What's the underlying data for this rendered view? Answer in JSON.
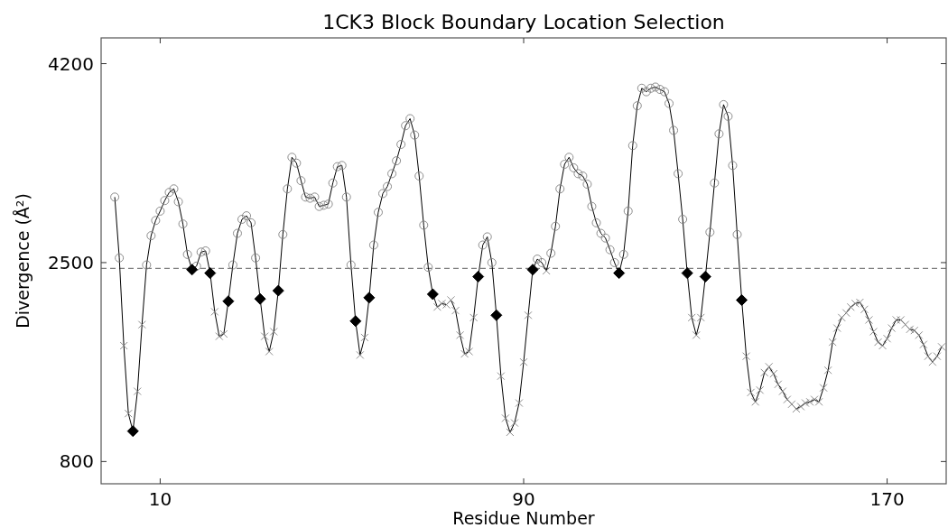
{
  "chart_data": {
    "type": "line",
    "title": "1CK3 Block Boundary Location Selection",
    "xlabel": "Residue Number",
    "ylabel": "Divergence (Å²)",
    "xlim": [
      -3,
      183
    ],
    "xticks": [
      10,
      90,
      170
    ],
    "ylim": [
      610,
      4420
    ],
    "yticks": [
      800,
      2500,
      4200
    ],
    "grid": false,
    "ref_lines": [
      {
        "axis": "y",
        "value": 2450,
        "color": "#808080",
        "line_style": "dashed"
      }
    ],
    "series": [
      {
        "color": "#000000",
        "marker": "none",
        "line_style": "solid",
        "x": [
          0,
          1,
          2,
          3,
          4,
          5,
          6,
          7,
          8,
          9,
          10,
          11,
          12,
          13,
          14,
          15,
          16,
          17,
          18,
          19,
          20,
          21,
          22,
          23,
          24,
          25,
          26,
          27,
          28,
          29,
          30,
          31,
          32,
          33,
          34,
          35,
          36,
          37,
          38,
          39,
          40,
          41,
          42,
          43,
          44,
          45,
          46,
          47,
          48,
          49,
          50,
          51,
          52,
          53,
          54,
          55,
          56,
          57,
          58,
          59,
          60,
          61,
          62,
          63,
          64,
          65,
          66,
          67,
          68,
          69,
          70,
          71,
          72,
          73,
          74,
          75,
          76,
          77,
          78,
          79,
          80,
          81,
          82,
          83,
          84,
          85,
          86,
          87,
          88,
          89,
          90,
          91,
          92,
          93,
          94,
          95,
          96,
          97,
          98,
          99,
          100,
          101,
          102,
          103,
          104,
          105,
          106,
          107,
          108,
          109,
          110,
          111,
          112,
          113,
          114,
          115,
          116,
          117,
          118,
          119,
          120,
          121,
          122,
          123,
          124,
          125,
          126,
          127,
          128,
          129,
          130,
          131,
          132,
          133,
          134,
          135,
          136,
          137,
          138,
          139,
          140,
          141,
          142,
          143,
          144,
          145,
          146,
          147,
          148,
          149,
          150,
          151,
          152,
          153,
          154,
          155,
          156,
          157,
          158,
          159,
          160,
          161,
          162,
          163,
          164,
          165,
          166,
          167,
          168,
          169,
          170,
          171,
          172,
          173,
          174,
          175,
          176,
          177,
          178,
          179,
          180,
          181,
          182
        ],
        "values": [
          3060,
          2540,
          1790,
          1210,
          1060,
          1400,
          1970,
          2480,
          2730,
          2860,
          2940,
          3030,
          3100,
          3130,
          3020,
          2830,
          2570,
          2440,
          2470,
          2590,
          2600,
          2410,
          2080,
          1870,
          1890,
          2170,
          2480,
          2750,
          2870,
          2900,
          2840,
          2540,
          2190,
          1870,
          1740,
          1910,
          2260,
          2740,
          3130,
          3400,
          3350,
          3200,
          3060,
          3050,
          3060,
          2980,
          2990,
          3000,
          3180,
          3320,
          3330,
          3060,
          2480,
          2000,
          1710,
          1860,
          2200,
          2650,
          2930,
          3090,
          3150,
          3260,
          3370,
          3510,
          3670,
          3730,
          3590,
          3240,
          2820,
          2460,
          2230,
          2120,
          2150,
          2140,
          2180,
          2090,
          1880,
          1720,
          1740,
          2030,
          2380,
          2650,
          2720,
          2500,
          2050,
          1530,
          1170,
          1050,
          1130,
          1300,
          1650,
          2050,
          2440,
          2530,
          2500,
          2430,
          2580,
          2810,
          3130,
          3340,
          3400,
          3310,
          3260,
          3240,
          3170,
          2980,
          2840,
          2750,
          2710,
          2610,
          2500,
          2410,
          2570,
          2940,
          3500,
          3840,
          3990,
          3960,
          3990,
          4000,
          3980,
          3960,
          3860,
          3630,
          3260,
          2870,
          2410,
          2030,
          1880,
          2030,
          2380,
          2760,
          3180,
          3600,
          3850,
          3750,
          3330,
          2740,
          2180,
          1700,
          1390,
          1310,
          1410,
          1560,
          1610,
          1550,
          1460,
          1400,
          1330,
          1290,
          1250,
          1270,
          1300,
          1310,
          1330,
          1310,
          1430,
          1580,
          1820,
          1940,
          2030,
          2070,
          2120,
          2150,
          2160,
          2100,
          2010,
          1910,
          1820,
          1790,
          1850,
          1940,
          2010,
          2010,
          1970,
          1930,
          1920,
          1880,
          1800,
          1700,
          1650,
          1700,
          1780
        ]
      },
      {
        "type": "scatter",
        "color": "#808080",
        "marker": "circle",
        "x": [
          0,
          1,
          7,
          8,
          9,
          10,
          11,
          12,
          13,
          14,
          15,
          16,
          18,
          19,
          20,
          26,
          27,
          28,
          29,
          30,
          31,
          37,
          38,
          39,
          40,
          41,
          42,
          43,
          44,
          45,
          46,
          47,
          48,
          49,
          50,
          51,
          52,
          57,
          58,
          59,
          60,
          61,
          62,
          63,
          64,
          65,
          66,
          67,
          68,
          69,
          81,
          82,
          83,
          93,
          94,
          96,
          97,
          98,
          99,
          100,
          101,
          102,
          103,
          104,
          105,
          106,
          107,
          108,
          109,
          110,
          112,
          113,
          114,
          115,
          116,
          117,
          118,
          119,
          120,
          121,
          122,
          123,
          124,
          125,
          131,
          132,
          133,
          134,
          135,
          136,
          137
        ],
        "values": [
          3060,
          2540,
          2480,
          2730,
          2860,
          2940,
          3030,
          3100,
          3130,
          3020,
          2830,
          2570,
          2470,
          2590,
          2600,
          2480,
          2750,
          2870,
          2900,
          2840,
          2540,
          2740,
          3130,
          3400,
          3350,
          3200,
          3060,
          3050,
          3060,
          2980,
          2990,
          3000,
          3180,
          3320,
          3330,
          3060,
          2480,
          2650,
          2930,
          3090,
          3150,
          3260,
          3370,
          3510,
          3670,
          3730,
          3590,
          3240,
          2820,
          2460,
          2650,
          2720,
          2500,
          2530,
          2500,
          2580,
          2810,
          3130,
          3340,
          3400,
          3310,
          3260,
          3240,
          3170,
          2980,
          2840,
          2750,
          2710,
          2610,
          2500,
          2570,
          2940,
          3500,
          3840,
          3990,
          3960,
          3990,
          4000,
          3980,
          3960,
          3860,
          3630,
          3260,
          2870,
          2760,
          3180,
          3600,
          3850,
          3750,
          3330,
          2740
        ]
      },
      {
        "type": "scatter",
        "color": "#808080",
        "marker": "cross",
        "x": [
          2,
          3,
          5,
          6,
          22,
          23,
          24,
          33,
          34,
          35,
          54,
          55,
          71,
          72,
          73,
          74,
          75,
          76,
          77,
          78,
          79,
          85,
          86,
          87,
          88,
          89,
          90,
          91,
          95,
          127,
          128,
          129,
          139,
          140,
          141,
          142,
          143,
          144,
          145,
          146,
          147,
          148,
          149,
          150,
          151,
          152,
          153,
          154,
          155,
          156,
          157,
          158,
          159,
          160,
          161,
          162,
          163,
          164,
          165,
          166,
          167,
          168,
          169,
          170,
          171,
          172,
          173,
          174,
          175,
          176,
          177,
          178,
          179,
          180,
          181,
          182
        ],
        "values": [
          1790,
          1210,
          1400,
          1970,
          2080,
          1870,
          1890,
          1870,
          1740,
          1910,
          1710,
          1860,
          2120,
          2150,
          2140,
          2180,
          2090,
          1880,
          1720,
          1740,
          2030,
          1530,
          1170,
          1050,
          1130,
          1300,
          1650,
          2050,
          2430,
          2030,
          1880,
          2030,
          1700,
          1390,
          1310,
          1410,
          1560,
          1610,
          1550,
          1460,
          1400,
          1330,
          1290,
          1250,
          1270,
          1300,
          1310,
          1330,
          1310,
          1430,
          1580,
          1820,
          1940,
          2030,
          2070,
          2120,
          2150,
          2160,
          2100,
          2010,
          1910,
          1820,
          1790,
          1850,
          1940,
          2010,
          2010,
          1970,
          1930,
          1920,
          1880,
          1800,
          1700,
          1650,
          1700,
          1780
        ]
      },
      {
        "type": "scatter",
        "color": "#000000",
        "marker": "diamond",
        "x": [
          4,
          17,
          21,
          25,
          32,
          36,
          53,
          56,
          70,
          80,
          84,
          92,
          111,
          126,
          130,
          138
        ],
        "values": [
          1060,
          2440,
          2410,
          2170,
          2190,
          2260,
          2000,
          2200,
          2230,
          2380,
          2050,
          2440,
          2410,
          2410,
          2380,
          2180
        ]
      }
    ]
  }
}
